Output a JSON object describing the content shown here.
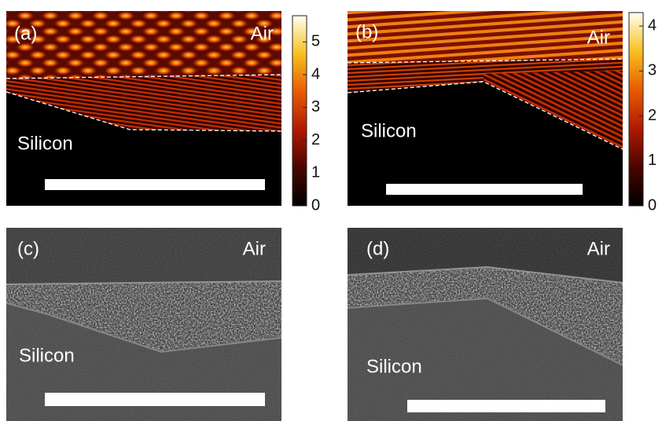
{
  "panels": [
    {
      "label": "(a)",
      "air": "Air",
      "silicon": "Silicon"
    },
    {
      "label": "(b)",
      "air": "Air",
      "silicon": "Silicon"
    },
    {
      "label": "(c)",
      "air": "Air",
      "silicon": "Silicon"
    },
    {
      "label": "(d)",
      "air": "Air",
      "silicon": "Silicon"
    }
  ],
  "colorbars": [
    {
      "lim": [
        0,
        5.8
      ],
      "ticks": [
        0,
        1,
        2,
        3,
        4,
        5
      ]
    },
    {
      "lim": [
        0,
        4.3
      ],
      "ticks": [
        0,
        1,
        2,
        3,
        4
      ]
    }
  ]
}
